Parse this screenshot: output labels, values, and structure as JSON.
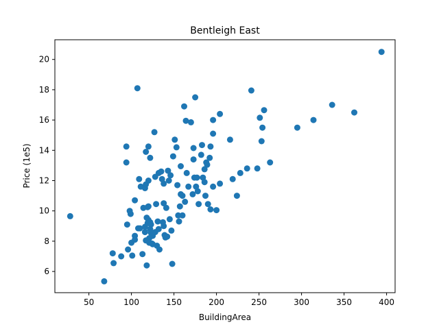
{
  "chart_data": {
    "type": "scatter",
    "title": "Bentleigh East",
    "xlabel": "BuildingArea",
    "ylabel": "Price (1e5)",
    "xlim": [
      10,
      410
    ],
    "ylim": [
      4.6,
      21.3
    ],
    "xticks": [
      50,
      100,
      150,
      200,
      250,
      300,
      350,
      400
    ],
    "yticks": [
      6,
      8,
      10,
      12,
      14,
      16,
      18,
      20
    ],
    "grid": false,
    "legend": "none",
    "marker_color": "#1f77b4",
    "points": [
      [
        28,
        9.65
      ],
      [
        68,
        5.35
      ],
      [
        78,
        7.2
      ],
      [
        79,
        6.55
      ],
      [
        88,
        7.0
      ],
      [
        94,
        14.25
      ],
      [
        94,
        13.2
      ],
      [
        95,
        9.1
      ],
      [
        96,
        7.45
      ],
      [
        98,
        10.0
      ],
      [
        99,
        9.8
      ],
      [
        100,
        7.9
      ],
      [
        101,
        7.05
      ],
      [
        104,
        10.7
      ],
      [
        104,
        8.35
      ],
      [
        104,
        8.1
      ],
      [
        107,
        18.1
      ],
      [
        108,
        8.85
      ],
      [
        109,
        12.1
      ],
      [
        110,
        8.85
      ],
      [
        111,
        11.6
      ],
      [
        113,
        7.15
      ],
      [
        114,
        10.2
      ],
      [
        116,
        11.5
      ],
      [
        116,
        8.95
      ],
      [
        116,
        8.6
      ],
      [
        117,
        13.9
      ],
      [
        117,
        11.75
      ],
      [
        117,
        8.05
      ],
      [
        118,
        6.4
      ],
      [
        118,
        9.55
      ],
      [
        119,
        10.25
      ],
      [
        119,
        9.2
      ],
      [
        120,
        14.25
      ],
      [
        120,
        12.0
      ],
      [
        120,
        10.3
      ],
      [
        120,
        9.4
      ],
      [
        121,
        8.2
      ],
      [
        121,
        7.9
      ],
      [
        122,
        13.5
      ],
      [
        122,
        9.25
      ],
      [
        122,
        8.8
      ],
      [
        123,
        9.1
      ],
      [
        123,
        8.55
      ],
      [
        124,
        7.85
      ],
      [
        125,
        8.35
      ],
      [
        125,
        7.8
      ],
      [
        127,
        15.2
      ],
      [
        128,
        12.25
      ],
      [
        128,
        8.6
      ],
      [
        129,
        10.45
      ],
      [
        130,
        7.7
      ],
      [
        131,
        9.3
      ],
      [
        132,
        12.5
      ],
      [
        132,
        8.8
      ],
      [
        133,
        7.45
      ],
      [
        135,
        12.6
      ],
      [
        136,
        12.1
      ],
      [
        137,
        9.25
      ],
      [
        138,
        11.8
      ],
      [
        138,
        10.5
      ],
      [
        138,
        9.0
      ],
      [
        139,
        8.4
      ],
      [
        140,
        8.25
      ],
      [
        141,
        10.2
      ],
      [
        142,
        8.3
      ],
      [
        143,
        12.65
      ],
      [
        144,
        12.0
      ],
      [
        145,
        9.45
      ],
      [
        146,
        12.35
      ],
      [
        147,
        8.7
      ],
      [
        148,
        6.5
      ],
      [
        149,
        13.6
      ],
      [
        151,
        14.7
      ],
      [
        153,
        14.2
      ],
      [
        154,
        11.7
      ],
      [
        155,
        9.7
      ],
      [
        156,
        9.3
      ],
      [
        157,
        10.3
      ],
      [
        158,
        12.95
      ],
      [
        158,
        11.1
      ],
      [
        160,
        9.7
      ],
      [
        160,
        11.0
      ],
      [
        162,
        16.9
      ],
      [
        163,
        10.6
      ],
      [
        164,
        15.95
      ],
      [
        165,
        12.5
      ],
      [
        167,
        11.6
      ],
      [
        170,
        15.85
      ],
      [
        172,
        11.1
      ],
      [
        173,
        13.4
      ],
      [
        173,
        14.15
      ],
      [
        174,
        12.2
      ],
      [
        175,
        17.5
      ],
      [
        176,
        11.6
      ],
      [
        177,
        12.2
      ],
      [
        178,
        11.3
      ],
      [
        179,
        10.45
      ],
      [
        182,
        13.7
      ],
      [
        183,
        14.35
      ],
      [
        184,
        12.2
      ],
      [
        186,
        12.75
      ],
      [
        186,
        11.9
      ],
      [
        187,
        11.0
      ],
      [
        188,
        13.2
      ],
      [
        189,
        13.05
      ],
      [
        190,
        10.45
      ],
      [
        192,
        13.5
      ],
      [
        193,
        14.25
      ],
      [
        193,
        10.1
      ],
      [
        196,
        15.1
      ],
      [
        196,
        11.6
      ],
      [
        196,
        16.0
      ],
      [
        200,
        10.05
      ],
      [
        204,
        16.4
      ],
      [
        204,
        11.8
      ],
      [
        216,
        14.7
      ],
      [
        219,
        12.1
      ],
      [
        224,
        11.0
      ],
      [
        228,
        12.5
      ],
      [
        236,
        12.8
      ],
      [
        241,
        17.95
      ],
      [
        248,
        12.8
      ],
      [
        251,
        16.15
      ],
      [
        253,
        14.6
      ],
      [
        254,
        15.5
      ],
      [
        256,
        16.65
      ],
      [
        263,
        13.2
      ],
      [
        295,
        15.5
      ],
      [
        314,
        16.0
      ],
      [
        336,
        17.0
      ],
      [
        362,
        16.5
      ],
      [
        394,
        20.5
      ]
    ]
  }
}
